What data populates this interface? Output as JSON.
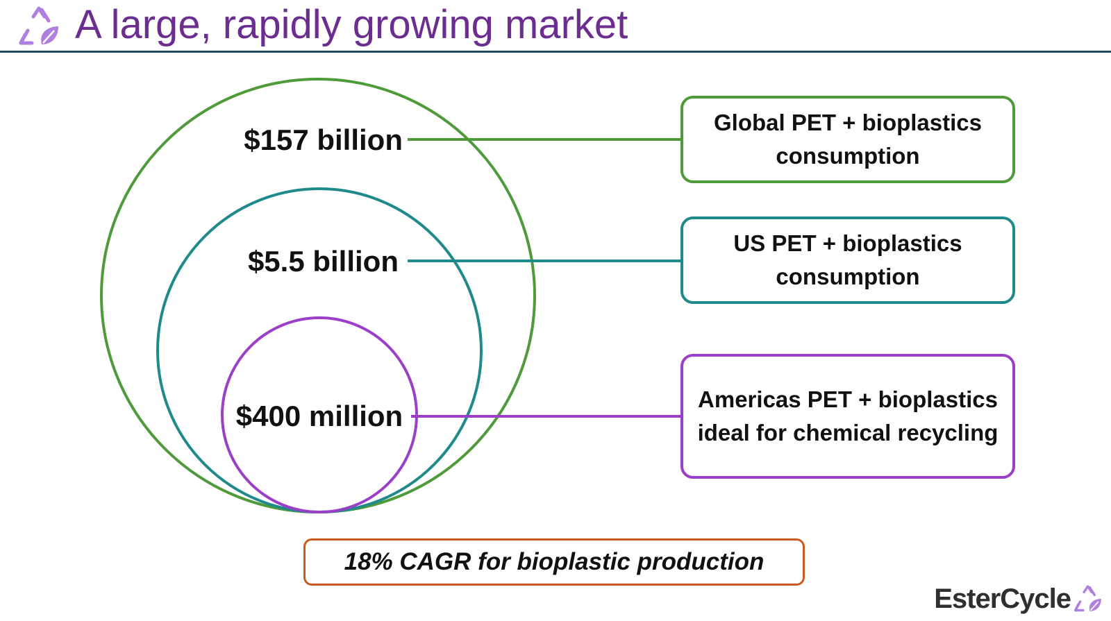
{
  "header": {
    "title": "A large, rapidly growing market",
    "logo_icon": "recycle-leaf-icon"
  },
  "colors": {
    "title": "#6b2d8f",
    "global": "#4f9a3a",
    "us": "#1f8a8c",
    "americas": "#9b3fc8",
    "cagr_border": "#c85a1e",
    "rule": "#1f4e5f"
  },
  "markets": [
    {
      "value": "$157 billion",
      "description": "Global PET + bioplastics consumption"
    },
    {
      "value": "$5.5 billion",
      "description": "US PET + bioplastics consumption"
    },
    {
      "value": "$400 million",
      "description": "Americas PET + bioplastics ideal for chemical recycling"
    }
  ],
  "callout": {
    "text": "18% CAGR for bioplastic production"
  },
  "brand": {
    "name": "EsterCycle",
    "icon": "recycle-leaf-icon"
  }
}
